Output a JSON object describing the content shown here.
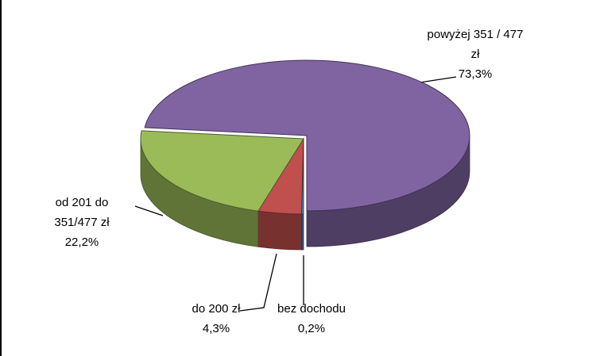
{
  "chart_data": {
    "type": "pie",
    "categories": [
      "bez dochodu",
      "do 200 zł",
      "od 201 do 351/477 zł",
      "powyżej 351 / 477 zł"
    ],
    "values": [
      0.2,
      4.3,
      22.2,
      73.3
    ],
    "value_labels": [
      "0,2%",
      "4,3%",
      "22,2%",
      "73,3%"
    ],
    "colors": [
      "#4f81bd",
      "#c0504d",
      "#9bbb59",
      "#8064a2"
    ]
  }
}
